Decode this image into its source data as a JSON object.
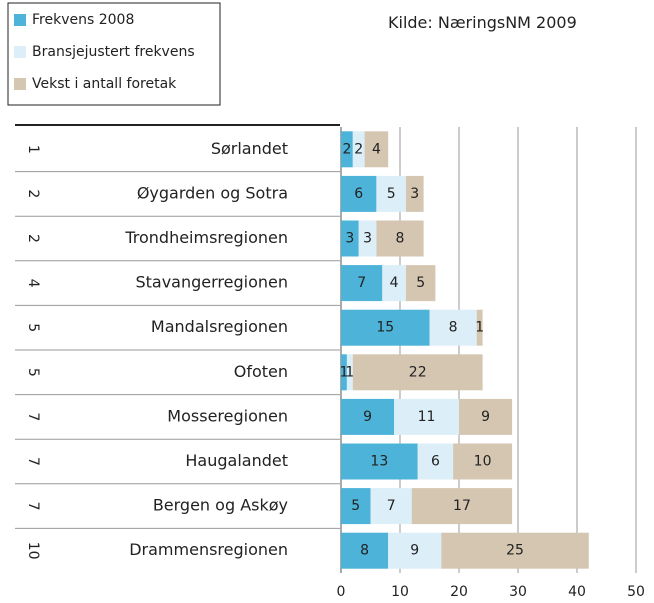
{
  "chart_data": {
    "type": "stacked_barh",
    "source": "Kilde:  NæringsNM 2009",
    "categories": [
      "Sørlandet",
      "Øygarden og Sotra",
      "Trondheimsregionen",
      "Stavangerregionen",
      "Mandalsregionen",
      "Ofoten",
      "Mosseregionen",
      "Haugalandet",
      "Bergen og Askøy",
      "Drammensregionen"
    ],
    "ranks": [
      1,
      2,
      2,
      4,
      5,
      5,
      7,
      7,
      7,
      10
    ],
    "series": [
      {
        "name": "Frekvens 2008",
        "color": "#4db3d9",
        "values": [
          2,
          6,
          3,
          7,
          15,
          1,
          9,
          13,
          5,
          8
        ]
      },
      {
        "name": "Bransjejustert frekvens",
        "color": "#dceef8",
        "values": [
          2,
          5,
          3,
          4,
          8,
          1,
          11,
          6,
          7,
          9
        ]
      },
      {
        "name": "Vekst i antall foretak",
        "color": "#d5c6b2",
        "values": [
          4,
          3,
          8,
          5,
          1,
          22,
          9,
          10,
          17,
          25
        ]
      }
    ],
    "xlim": [
      0,
      50
    ],
    "xticks": [
      0,
      10,
      20,
      30,
      40,
      50
    ],
    "grid": true
  }
}
